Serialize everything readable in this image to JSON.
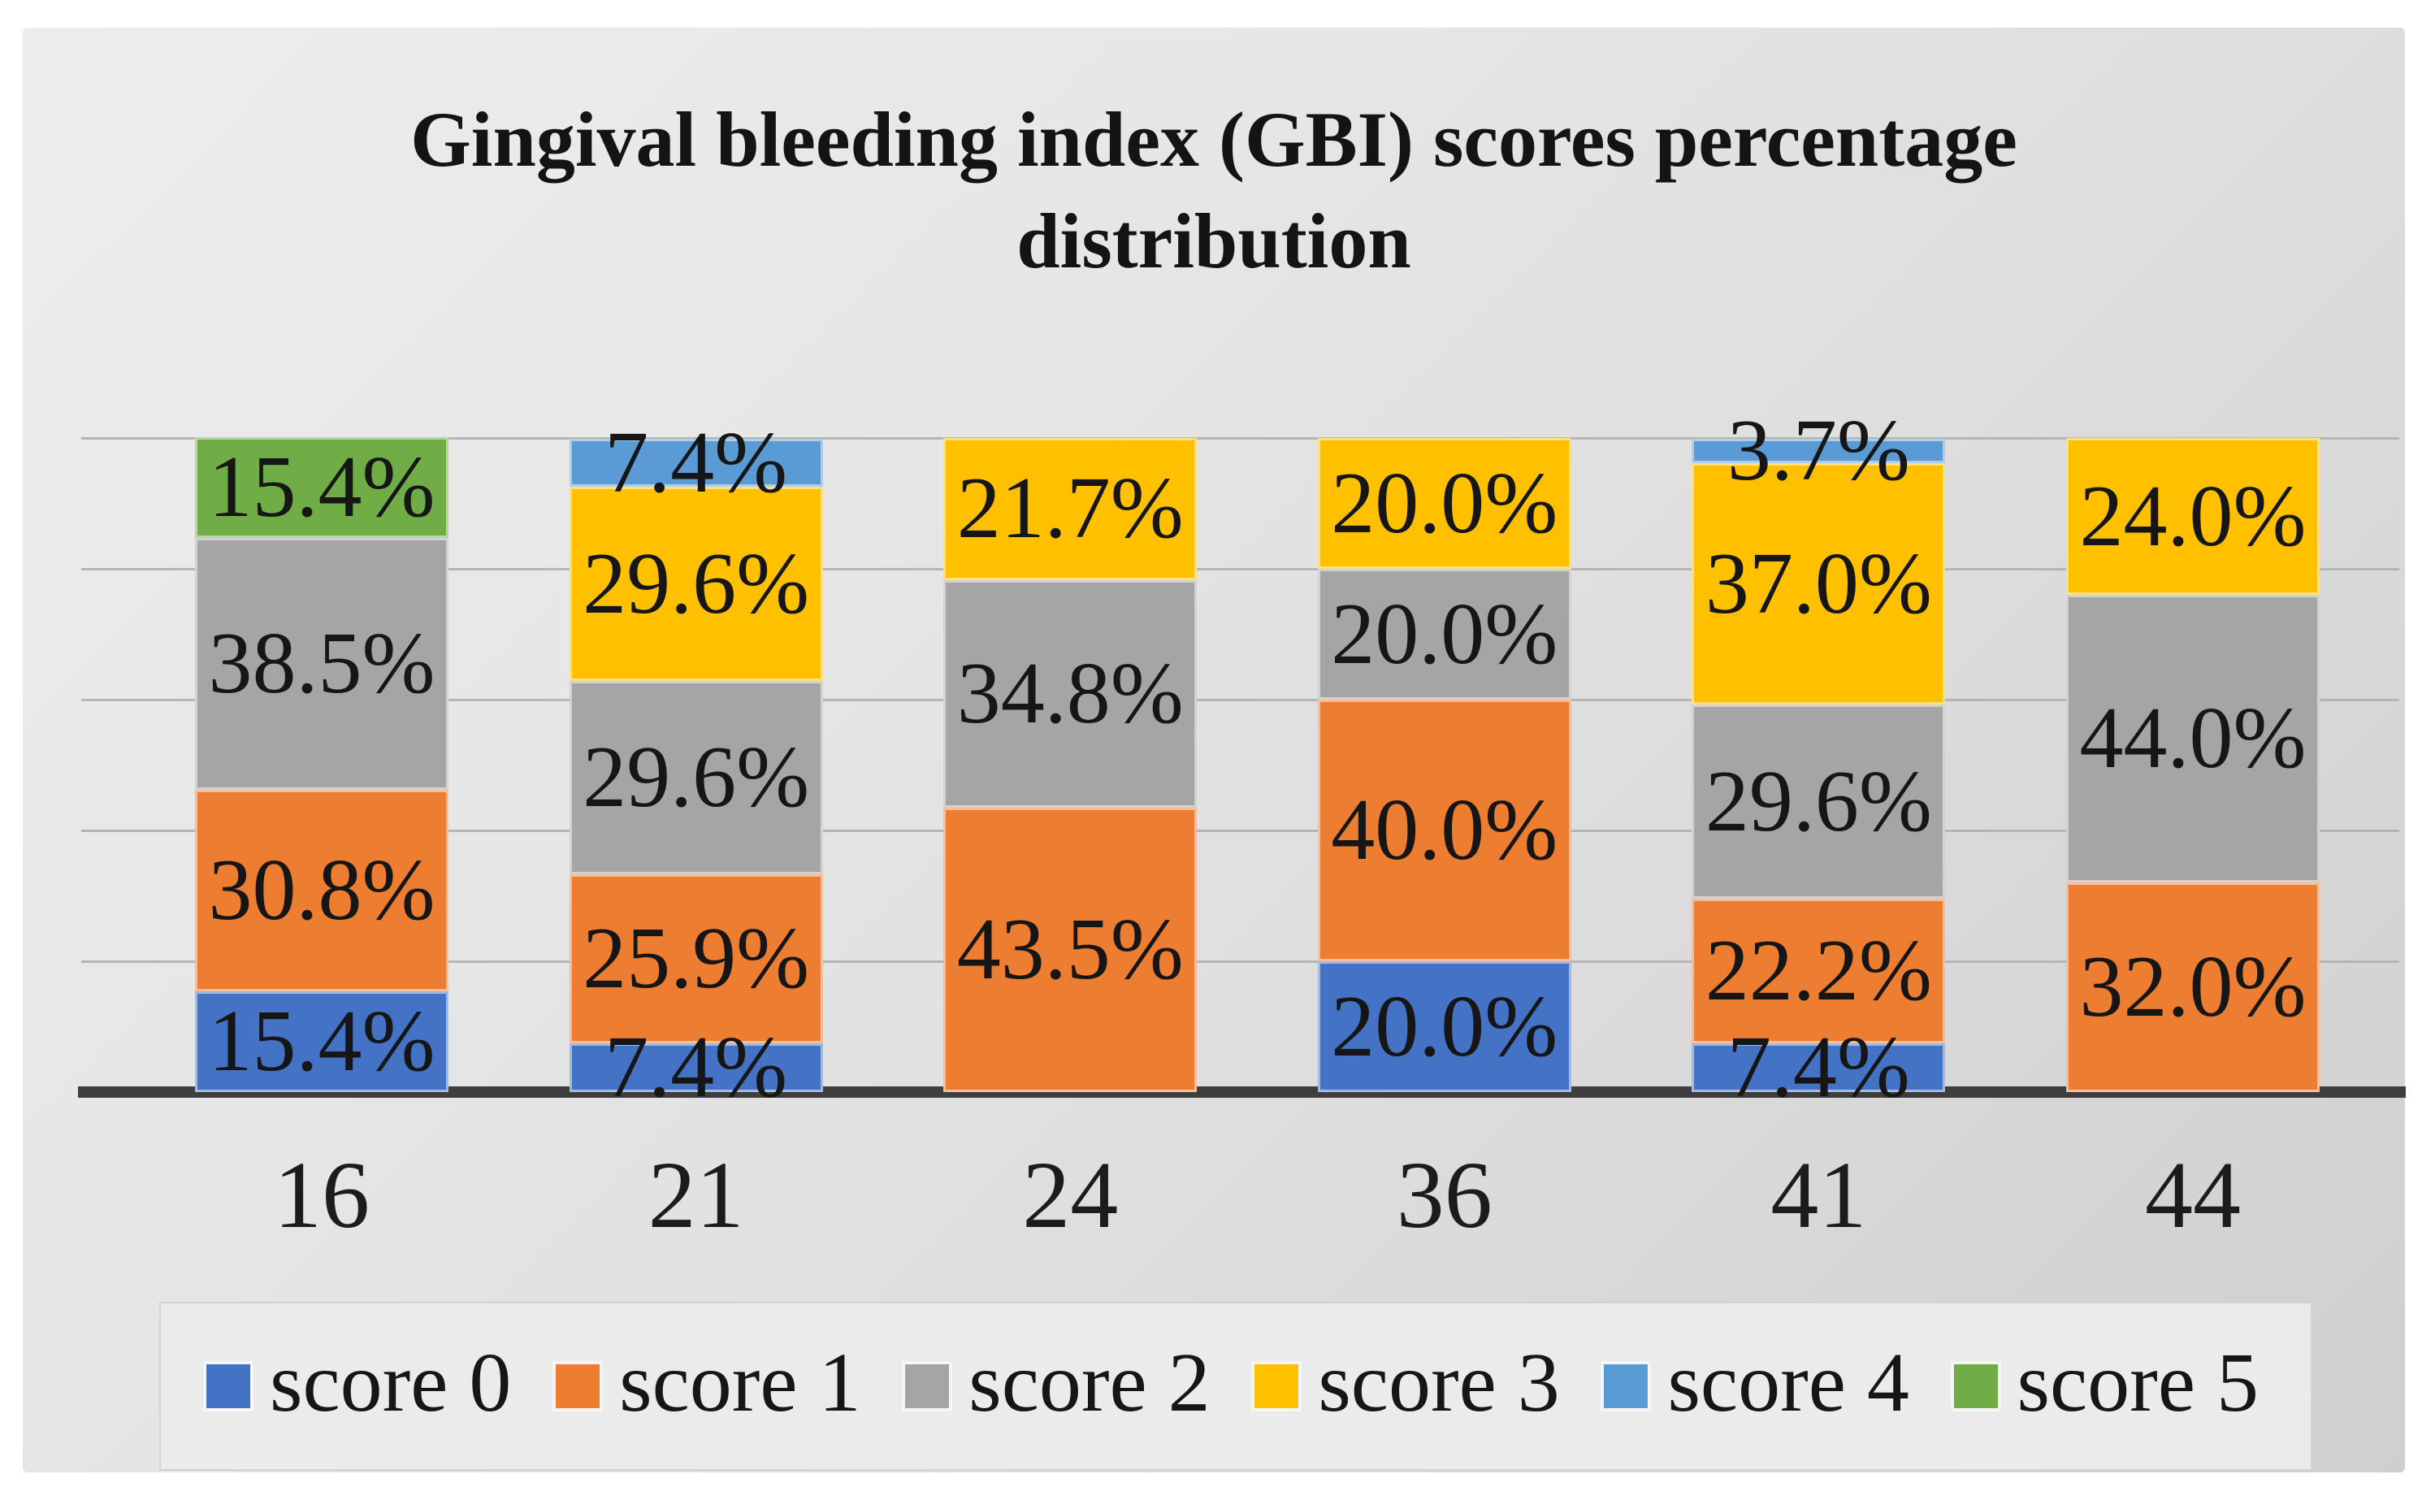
{
  "title": {
    "line1": "Gingival bleeding index (GBI) scores percentage",
    "line2": "distribution"
  },
  "chart_data": {
    "type": "bar",
    "stacked": true,
    "unit": "%",
    "title": "Gingival bleeding index (GBI) scores percentage distribution",
    "categories": [
      "16",
      "21",
      "24",
      "36",
      "41",
      "44"
    ],
    "series": [
      {
        "name": "score 0",
        "color": "#4472C4",
        "values": [
          15.4,
          7.4,
          null,
          20.0,
          7.4,
          null
        ]
      },
      {
        "name": "score 1",
        "color": "#ED7D31",
        "values": [
          30.8,
          25.9,
          43.5,
          40.0,
          22.2,
          32.0
        ]
      },
      {
        "name": "score 2",
        "color": "#A5A5A5",
        "values": [
          38.5,
          29.6,
          34.8,
          20.0,
          29.6,
          44.0
        ]
      },
      {
        "name": "score 3",
        "color": "#FFC000",
        "values": [
          null,
          29.6,
          21.7,
          20.0,
          37.0,
          24.0
        ]
      },
      {
        "name": "score 4",
        "color": "#5B9BD5",
        "values": [
          null,
          7.4,
          null,
          null,
          3.7,
          null
        ]
      },
      {
        "name": "score 5",
        "color": "#70AD47",
        "values": [
          15.4,
          null,
          null,
          null,
          null,
          null
        ]
      }
    ],
    "ylim": [
      0,
      100
    ],
    "gridlines_every_pct": 20,
    "grid": true,
    "y_axis_labels_visible": false,
    "legend_position": "bottom",
    "data_label_format": "one_decimal_percent"
  },
  "colors": {
    "axis_line": "#3e3e3e",
    "gridline": "#b5b5b5",
    "panel_background": "#e3e3e3",
    "legend_background": "#ebebeb",
    "text": "#161616"
  }
}
